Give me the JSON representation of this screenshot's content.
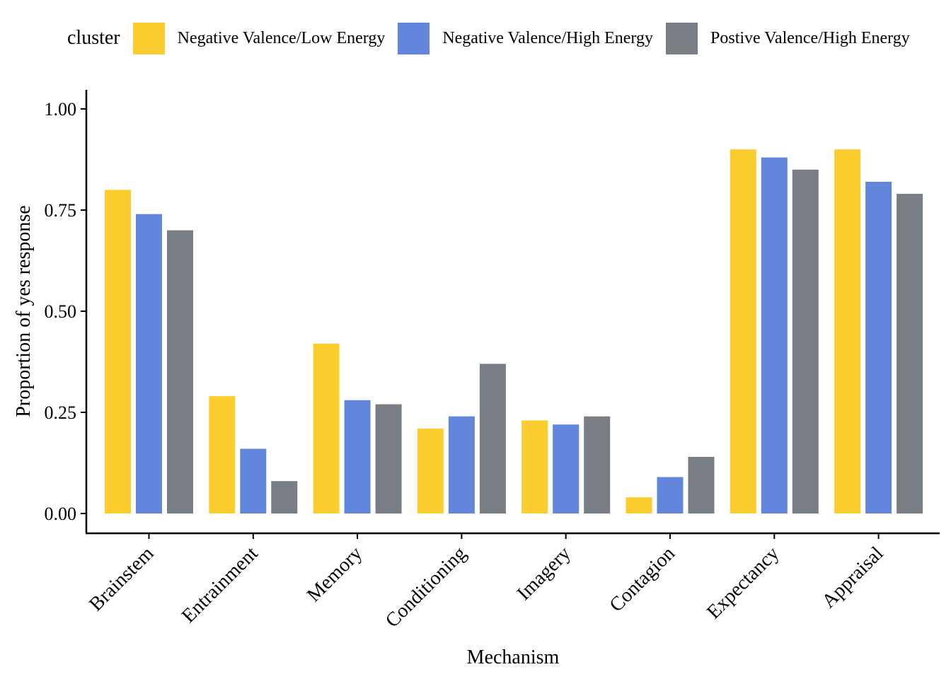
{
  "chart_data": {
    "type": "bar",
    "title": "",
    "xlabel": "Mechanism",
    "ylabel": "Proportion of yes response",
    "ylim": [
      0,
      1
    ],
    "yticks": [
      "0.00",
      "0.25",
      "0.50",
      "0.75",
      "1.00"
    ],
    "grid": false,
    "legend": {
      "title": "cluster",
      "position": "top"
    },
    "categories": [
      "Brainstem",
      "Entrainment",
      "Memory",
      "Conditioning",
      "Imagery",
      "Contagion",
      "Expectancy",
      "Appraisal"
    ],
    "series": [
      {
        "name": "Negative Valence/Low Energy",
        "color": "#FCCD2E",
        "values": [
          0.8,
          0.29,
          0.42,
          0.21,
          0.23,
          0.04,
          0.9,
          0.9
        ]
      },
      {
        "name": "Negative Valence/High Energy",
        "color": "#6186DC",
        "values": [
          0.74,
          0.16,
          0.28,
          0.24,
          0.22,
          0.09,
          0.88,
          0.82
        ]
      },
      {
        "name": "Postive Valence/High Energy",
        "color": "#797E85",
        "values": [
          0.7,
          0.08,
          0.27,
          0.37,
          0.24,
          0.14,
          0.85,
          0.79
        ]
      }
    ]
  }
}
